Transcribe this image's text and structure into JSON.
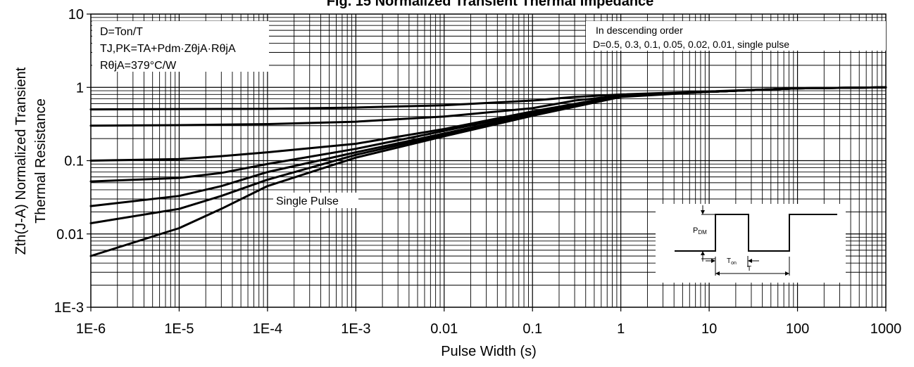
{
  "chart_data": {
    "type": "line",
    "title": "Fig. 15 Normalized Transient Thermal Impedance",
    "xlabel": "Pulse Width (s)",
    "ylabel_lines": [
      "Zth(J-A) Normalized Transient",
      "Thermal Resistance"
    ],
    "xscale": "log",
    "yscale": "log",
    "xlim": [
      1e-06,
      1000
    ],
    "ylim": [
      0.001,
      10
    ],
    "grid": true,
    "x_ticks": [
      {
        "value": 1e-06,
        "label": "1E-6"
      },
      {
        "value": 1e-05,
        "label": "1E-5"
      },
      {
        "value": 0.0001,
        "label": "1E-4"
      },
      {
        "value": 0.001,
        "label": "1E-3"
      },
      {
        "value": 0.01,
        "label": "0.01"
      },
      {
        "value": 0.1,
        "label": "0.1"
      },
      {
        "value": 1,
        "label": "1"
      },
      {
        "value": 10,
        "label": "10"
      },
      {
        "value": 100,
        "label": "100"
      },
      {
        "value": 1000,
        "label": "1000"
      }
    ],
    "y_ticks": [
      {
        "value": 0.001,
        "label": "1E-3"
      },
      {
        "value": 0.01,
        "label": "0.01"
      },
      {
        "value": 0.1,
        "label": "0.1"
      },
      {
        "value": 1,
        "label": "1"
      },
      {
        "value": 10,
        "label": "10"
      }
    ],
    "series": [
      {
        "x": [
          1e-06,
          1e-05,
          0.0001,
          0.001,
          0.01,
          0.1,
          0.3,
          1,
          10,
          100,
          1000
        ],
        "y": [
          0.5,
          0.505,
          0.51,
          0.53,
          0.57,
          0.66,
          0.74,
          0.8,
          0.88,
          0.97,
          1.0
        ]
      },
      {
        "x": [
          1e-06,
          1e-05,
          0.0001,
          0.001,
          0.01,
          0.1,
          0.3,
          1,
          10,
          100,
          1000
        ],
        "y": [
          0.3,
          0.305,
          0.315,
          0.34,
          0.4,
          0.52,
          0.66,
          0.77,
          0.87,
          0.97,
          1.0
        ]
      },
      {
        "x": [
          1e-06,
          1e-05,
          3e-05,
          0.0001,
          0.001,
          0.01,
          0.1,
          1,
          10,
          100,
          1000
        ],
        "y": [
          0.1,
          0.105,
          0.115,
          0.13,
          0.17,
          0.27,
          0.47,
          0.77,
          0.87,
          0.97,
          1.0
        ]
      },
      {
        "x": [
          1e-06,
          1e-05,
          3e-05,
          0.0001,
          0.001,
          0.01,
          0.1,
          1,
          10,
          100,
          1000
        ],
        "y": [
          0.052,
          0.058,
          0.068,
          0.09,
          0.145,
          0.255,
          0.45,
          0.76,
          0.87,
          0.97,
          1.0
        ]
      },
      {
        "x": [
          1e-06,
          1e-05,
          3e-05,
          0.0001,
          0.001,
          0.01,
          0.1,
          1,
          10,
          100,
          1000
        ],
        "y": [
          0.024,
          0.033,
          0.045,
          0.07,
          0.13,
          0.235,
          0.43,
          0.75,
          0.87,
          0.97,
          1.0
        ]
      },
      {
        "x": [
          1e-06,
          1e-05,
          3e-05,
          0.0001,
          0.001,
          0.01,
          0.1,
          1,
          10,
          100,
          1000
        ],
        "y": [
          0.014,
          0.022,
          0.033,
          0.055,
          0.12,
          0.225,
          0.42,
          0.75,
          0.87,
          0.97,
          1.0
        ]
      },
      {
        "x": [
          1e-06,
          1e-05,
          3e-05,
          0.0001,
          0.001,
          0.01,
          0.1,
          1,
          10,
          100,
          1000
        ],
        "y": [
          0.005,
          0.012,
          0.022,
          0.045,
          0.11,
          0.215,
          0.41,
          0.74,
          0.87,
          0.97,
          1.0
        ]
      }
    ],
    "annotations": {
      "top_left_lines": [
        "D=Ton/T",
        "TJ,PK=TA+Pdm·ZθjA·RθjA",
        "RθjA=379°C/W"
      ],
      "top_right_lines": [
        "In descending order",
        "D=0.5, 0.3, 0.1, 0.05, 0.02, 0.01, single pulse"
      ],
      "single_pulse_label": "Single Pulse",
      "inset_labels": {
        "pdm": "P",
        "pdm_sub": "DM",
        "ton": "T",
        "ton_sub": "on",
        "period": "T"
      }
    }
  }
}
